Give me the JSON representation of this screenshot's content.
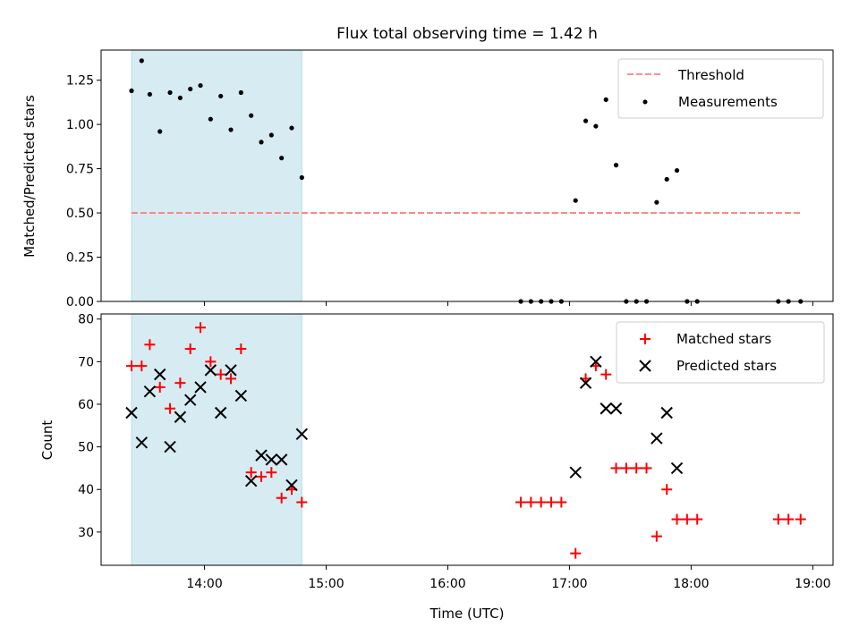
{
  "title": "Flux total observing time = 1.42 h",
  "chart_data": [
    {
      "type": "scatter",
      "ylabel": "Matched/Predicted stars",
      "xlabel": "",
      "xlim": [
        "13:09",
        "19:10"
      ],
      "ylim": [
        0,
        1.42
      ],
      "y_ticks": [
        0.0,
        0.25,
        0.5,
        0.75,
        1.0,
        1.25
      ],
      "y_tick_labels": [
        "0.00",
        "0.25",
        "0.50",
        "0.75",
        "1.00",
        "1.25"
      ],
      "shaded_span": {
        "x": [
          "13:24",
          "14:48"
        ],
        "color": "#add8e6"
      },
      "threshold": {
        "name": "Threshold",
        "y": 0.5,
        "x": [
          "13:24",
          "18:54"
        ],
        "color": "#ff7f7f",
        "style": "dashed"
      },
      "series": [
        {
          "name": "Measurements",
          "marker": "dot",
          "color": "#000000",
          "points": [
            [
              "13:24",
              1.19
            ],
            [
              "13:29",
              1.36
            ],
            [
              "13:33",
              1.17
            ],
            [
              "13:38",
              0.96
            ],
            [
              "13:43",
              1.18
            ],
            [
              "13:48",
              1.15
            ],
            [
              "13:53",
              1.2
            ],
            [
              "13:58",
              1.22
            ],
            [
              "14:03",
              1.03
            ],
            [
              "14:08",
              1.16
            ],
            [
              "14:13",
              0.97
            ],
            [
              "14:18",
              1.18
            ],
            [
              "14:23",
              1.05
            ],
            [
              "14:28",
              0.9
            ],
            [
              "14:33",
              0.94
            ],
            [
              "14:38",
              0.81
            ],
            [
              "14:43",
              0.98
            ],
            [
              "14:48",
              0.7
            ],
            [
              "16:36",
              0.0
            ],
            [
              "16:41",
              0.0
            ],
            [
              "16:46",
              0.0
            ],
            [
              "16:51",
              0.0
            ],
            [
              "16:56",
              0.0
            ],
            [
              "17:03",
              0.57
            ],
            [
              "17:08",
              1.02
            ],
            [
              "17:13",
              0.99
            ],
            [
              "17:18",
              1.14
            ],
            [
              "17:23",
              0.77
            ],
            [
              "17:28",
              0.0
            ],
            [
              "17:33",
              0.0
            ],
            [
              "17:38",
              0.0
            ],
            [
              "17:43",
              0.56
            ],
            [
              "17:48",
              0.69
            ],
            [
              "17:53",
              0.74
            ],
            [
              "17:58",
              0.0
            ],
            [
              "18:03",
              0.0
            ],
            [
              "18:43",
              0.0
            ],
            [
              "18:48",
              0.0
            ],
            [
              "18:54",
              0.0
            ]
          ]
        }
      ],
      "legend": {
        "placement": "top-right",
        "entries": [
          "Threshold",
          "Measurements"
        ]
      }
    },
    {
      "type": "scatter",
      "ylabel": "Count",
      "xlabel": "Time (UTC)",
      "xlim": [
        "13:09",
        "19:10"
      ],
      "ylim": [
        22.2,
        81.2
      ],
      "y_ticks": [
        30,
        40,
        50,
        60,
        70,
        80
      ],
      "y_tick_labels": [
        "30",
        "40",
        "50",
        "60",
        "70",
        "80"
      ],
      "x_ticks": [
        "14:00",
        "15:00",
        "16:00",
        "17:00",
        "18:00",
        "19:00"
      ],
      "x_tick_labels": [
        "14:00",
        "15:00",
        "16:00",
        "17:00",
        "18:00",
        "19:00"
      ],
      "shaded_span": {
        "x": [
          "13:24",
          "14:48"
        ],
        "color": "#add8e6"
      },
      "series": [
        {
          "name": "Matched stars",
          "marker": "plus",
          "color": "#ff0000",
          "points": [
            [
              "13:24",
              69
            ],
            [
              "13:29",
              69
            ],
            [
              "13:33",
              74
            ],
            [
              "13:38",
              64
            ],
            [
              "13:43",
              59
            ],
            [
              "13:48",
              65
            ],
            [
              "13:53",
              73
            ],
            [
              "13:58",
              78
            ],
            [
              "14:03",
              70
            ],
            [
              "14:08",
              67
            ],
            [
              "14:13",
              66
            ],
            [
              "14:18",
              73
            ],
            [
              "14:23",
              44
            ],
            [
              "14:28",
              43
            ],
            [
              "14:33",
              44
            ],
            [
              "14:38",
              38
            ],
            [
              "14:43",
              40
            ],
            [
              "14:48",
              37
            ],
            [
              "16:36",
              37
            ],
            [
              "16:41",
              37
            ],
            [
              "16:46",
              37
            ],
            [
              "16:51",
              37
            ],
            [
              "16:56",
              37
            ],
            [
              "17:03",
              25
            ],
            [
              "17:08",
              66
            ],
            [
              "17:13",
              69
            ],
            [
              "17:18",
              67
            ],
            [
              "17:23",
              45
            ],
            [
              "17:28",
              45
            ],
            [
              "17:33",
              45
            ],
            [
              "17:38",
              45
            ],
            [
              "17:43",
              29
            ],
            [
              "17:48",
              40
            ],
            [
              "17:53",
              33
            ],
            [
              "17:58",
              33
            ],
            [
              "18:03",
              33
            ],
            [
              "18:43",
              33
            ],
            [
              "18:48",
              33
            ],
            [
              "18:54",
              33
            ]
          ]
        },
        {
          "name": "Predicted stars",
          "marker": "x",
          "color": "#000000",
          "points": [
            [
              "13:24",
              58
            ],
            [
              "13:29",
              51
            ],
            [
              "13:33",
              63
            ],
            [
              "13:38",
              67
            ],
            [
              "13:43",
              50
            ],
            [
              "13:48",
              57
            ],
            [
              "13:53",
              61
            ],
            [
              "13:58",
              64
            ],
            [
              "14:03",
              68
            ],
            [
              "14:08",
              58
            ],
            [
              "14:13",
              68
            ],
            [
              "14:18",
              62
            ],
            [
              "14:23",
              42
            ],
            [
              "14:28",
              48
            ],
            [
              "14:33",
              47
            ],
            [
              "14:38",
              47
            ],
            [
              "14:43",
              41
            ],
            [
              "14:48",
              53
            ],
            [
              "17:03",
              44
            ],
            [
              "17:08",
              65
            ],
            [
              "17:13",
              70
            ],
            [
              "17:18",
              59
            ],
            [
              "17:23",
              59
            ],
            [
              "17:43",
              52
            ],
            [
              "17:48",
              58
            ],
            [
              "17:53",
              45
            ]
          ]
        }
      ],
      "legend": {
        "placement": "top-right",
        "entries": [
          "Matched stars",
          "Predicted stars"
        ]
      }
    }
  ]
}
